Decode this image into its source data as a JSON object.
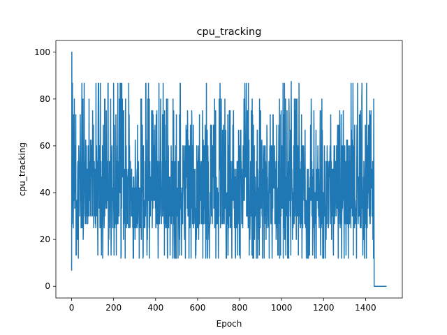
{
  "chart_data": {
    "type": "line",
    "title": "cpu_tracking",
    "xlabel": "Epoch",
    "ylabel": "cpu_tracking",
    "xlim": [
      -75,
      1575
    ],
    "ylim": [
      -5,
      105
    ],
    "xticks": [
      0,
      200,
      400,
      600,
      800,
      1000,
      1200,
      1400
    ],
    "yticks": [
      0,
      20,
      40,
      60,
      80,
      100
    ],
    "grid": false,
    "series": [
      {
        "color": "#1f77b4",
        "x_start": 0,
        "x_step": 1,
        "summary": "1500 epochs; starts at ~6.7, spikes to 100 at epoch ~1, then oscillates roughly between 12 and 87 (mean ~40) until epoch ~1440, then drops to 0 and stays at 0 through epoch 1500",
        "key_points": [
          {
            "x": 0,
            "y": 6.7
          },
          {
            "x": 1,
            "y": 100
          },
          {
            "x": 2,
            "y": 26.7
          },
          {
            "x": 174,
            "y": 86.7
          },
          {
            "x": 1046,
            "y": 87.5
          },
          {
            "x": 1440,
            "y": 46.7
          },
          {
            "x": 1445,
            "y": 0
          },
          {
            "x": 1500,
            "y": 0
          }
        ],
        "noise_range": [
          12,
          87
        ],
        "noise_levels": [
          12,
          13.3,
          20,
          25,
          26.7,
          30,
          33.3,
          36.7,
          40,
          42,
          46.7,
          50,
          53.3,
          60,
          62.5,
          66.7,
          68.8,
          73.3,
          75,
          80,
          86.7
        ],
        "drop_epoch": 1441,
        "end_epoch": 1500
      }
    ]
  }
}
